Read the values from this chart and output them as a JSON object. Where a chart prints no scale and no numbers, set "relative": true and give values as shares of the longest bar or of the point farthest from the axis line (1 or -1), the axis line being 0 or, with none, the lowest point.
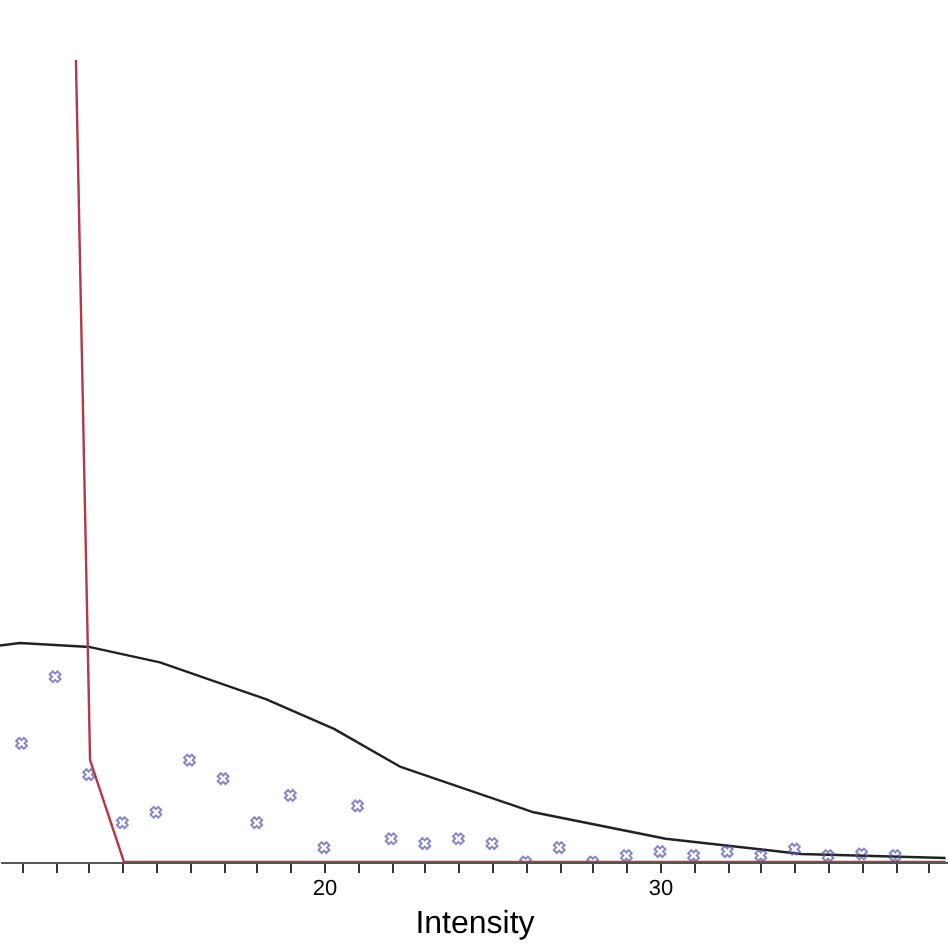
{
  "chart_data": {
    "type": "line",
    "xlabel": "Intensity",
    "relative": true,
    "xlim": [
      10.36,
      38.57
    ],
    "xticks": [
      {
        "value": 11,
        "label": null
      },
      {
        "value": 12,
        "label": null
      },
      {
        "value": 13,
        "label": null
      },
      {
        "value": 14,
        "label": null
      },
      {
        "value": 15,
        "label": null
      },
      {
        "value": 16,
        "label": null
      },
      {
        "value": 17,
        "label": null
      },
      {
        "value": 18,
        "label": null
      },
      {
        "value": 19,
        "label": null
      },
      20,
      {
        "value": 21,
        "label": null
      },
      {
        "value": 22,
        "label": null
      },
      {
        "value": 23,
        "label": null
      },
      {
        "value": 24,
        "label": null
      },
      {
        "value": 25,
        "label": null
      },
      {
        "value": 26,
        "label": null
      },
      {
        "value": 27,
        "label": null
      },
      {
        "value": 28,
        "label": null
      },
      {
        "value": 29,
        "label": null
      },
      30,
      {
        "value": 31,
        "label": null
      },
      {
        "value": 32,
        "label": null
      },
      {
        "value": 33,
        "label": null
      },
      {
        "value": 34,
        "label": null
      },
      {
        "value": 35,
        "label": null
      },
      {
        "value": 36,
        "label": null
      },
      {
        "value": 37,
        "label": null
      },
      {
        "value": 38,
        "label": null
      }
    ],
    "grid": false,
    "line_style": "solid",
    "series": [
      {
        "color": "#222222",
        "x": [
          10.36,
          10.95,
          13.04,
          15.12,
          18.27,
          20.3,
          22.26,
          26.24,
          30.17,
          34.2,
          38.5
        ],
        "values": [
          0.27,
          0.273,
          0.268,
          0.249,
          0.203,
          0.166,
          0.119,
          0.062,
          0.029,
          0.01,
          0.005
        ]
      },
      {
        "type": "scatter",
        "marker": "cross",
        "color": "#5555aa",
        "x": [
          11,
          12,
          13,
          14,
          15,
          16,
          17,
          18,
          19,
          20,
          21,
          22,
          23,
          24,
          25,
          26,
          27,
          28,
          29,
          30,
          31,
          32,
          33,
          34,
          35,
          36,
          37
        ],
        "values": [
          0.148,
          0.231,
          0.109,
          0.049,
          0.062,
          0.127,
          0.104,
          0.049,
          0.083,
          0.018,
          0.07,
          0.029,
          0.023,
          0.029,
          0.023,
          0,
          0.018,
          0,
          0.008,
          0.013,
          0.008,
          0.013,
          0.008,
          0.016,
          0.008,
          0.01,
          0.008
        ]
      },
      {
        "color": "#b03a48",
        "x": [
          12.62,
          13.04,
          14.05,
          38.5
        ],
        "values": [
          1,
          0.127,
          0,
          0
        ]
      }
    ]
  }
}
